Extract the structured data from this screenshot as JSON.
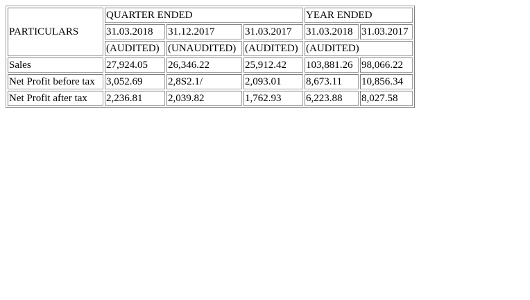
{
  "table": {
    "particulars_label": "PARTICULARS",
    "group_headers": {
      "quarter": "QUARTER ENDED",
      "year": "YEAR ENDED"
    },
    "dates": [
      "31.03.2018",
      "31.12.2017",
      "31.03.2017",
      "31.03.2018",
      "31.03.2017"
    ],
    "audit_status": {
      "q1": "(AUDITED)",
      "q2": "(UNAUDITED)",
      "q3": "(AUDITED)",
      "year": "(AUDITED)"
    },
    "rows": [
      {
        "label": "Sales",
        "values": [
          "27,924.05",
          "26,346.22",
          "25,912.42",
          "103,881.26",
          "98,066.22"
        ]
      },
      {
        "label": "Net Profit before tax",
        "values": [
          "3,052.69",
          "2,8S2.1/",
          "2,093.01",
          "8,673.11",
          "10,856.34"
        ]
      },
      {
        "label": "Net Profit after tax",
        "values": [
          "2,236.81",
          "2,039.82",
          "1,762.93",
          "6,223.88",
          "8,027.58"
        ]
      }
    ]
  }
}
